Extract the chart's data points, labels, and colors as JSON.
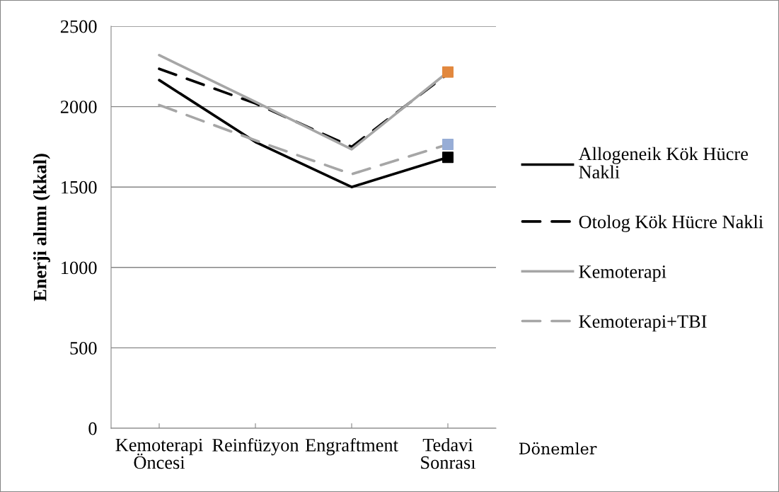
{
  "chart_data": {
    "type": "line",
    "ylabel": "Enerji alımı (kkal)",
    "xlabel": "Dönemler",
    "categories": [
      "Kemoterapi\nÖncesi",
      "Reinfüzyon",
      "Engraftment",
      "Tedavi\nSonrası"
    ],
    "series": [
      {
        "name": "Allogeneik Kök Hücre Nakli",
        "color": "#000000",
        "line_style": "solid",
        "values": [
          2165,
          1780,
          1500,
          1685
        ]
      },
      {
        "name": "Otolog Kök Hücre Nakli",
        "color": "#000000",
        "line_style": "dashed",
        "values": [
          2235,
          2020,
          1750,
          2205
        ]
      },
      {
        "name": "Kemoterapi",
        "color": "#a6a6a6",
        "line_style": "solid",
        "values": [
          2320,
          2030,
          1735,
          2215
        ]
      },
      {
        "name": "Kemoterapi+TBI",
        "color": "#a6a6a6",
        "line_style": "dashed",
        "values": [
          2010,
          1790,
          1580,
          1765
        ]
      },
      {
        "type": "scatter",
        "x": [
          "Tedavi\nSonrası"
        ],
        "values": [
          2215
        ],
        "color": "#e2883e",
        "marker": "square"
      },
      {
        "type": "scatter",
        "x": [
          "Tedavi\nSonrası"
        ],
        "values": [
          1765
        ],
        "color": "#97add6",
        "marker": "square"
      },
      {
        "type": "scatter",
        "x": [
          "Tedavi\nSonrası"
        ],
        "values": [
          1685
        ],
        "color": "#000000",
        "marker": "square"
      }
    ],
    "ylim": [
      0,
      2500
    ],
    "yticks": [
      0,
      500,
      1000,
      1500,
      2000,
      2500
    ],
    "grid": "y",
    "legend": "right",
    "marker": "none"
  }
}
